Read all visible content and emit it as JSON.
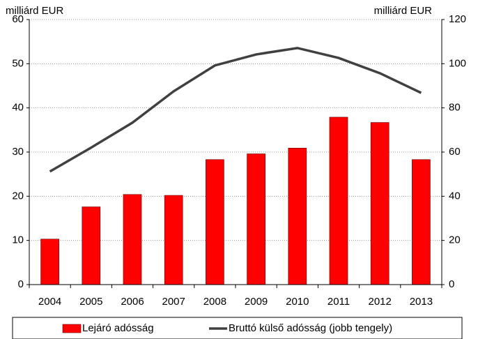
{
  "chart_data": {
    "type": "bar_line",
    "y_label": "milliárd EUR",
    "y2_label": "milliárd EUR",
    "categories": [
      "2004",
      "2005",
      "2006",
      "2007",
      "2008",
      "2009",
      "2010",
      "2011",
      "2012",
      "2013"
    ],
    "series": [
      {
        "name": "Lejáró adósság",
        "color": "#ff0000",
        "type": "bar",
        "values": [
          10.3,
          17.6,
          20.4,
          20.2,
          28.3,
          29.6,
          30.9,
          37.9,
          36.7,
          28.3
        ]
      },
      {
        "name": "Bruttó külső adósság (jobb tengely)",
        "color": "#404040",
        "type": "line",
        "axis": "y2",
        "values": [
          51.2,
          62,
          73.3,
          87.5,
          99.2,
          104.2,
          107.1,
          102.6,
          95.7,
          86.8
        ]
      }
    ],
    "ylim": [
      0,
      60
    ],
    "yticks": [
      0,
      10,
      20,
      30,
      40,
      50,
      60
    ],
    "y2lim": [
      0,
      120
    ],
    "y2ticks": [
      0,
      20,
      40,
      60,
      80,
      100,
      120
    ],
    "grid": true,
    "legend": "bottom"
  }
}
